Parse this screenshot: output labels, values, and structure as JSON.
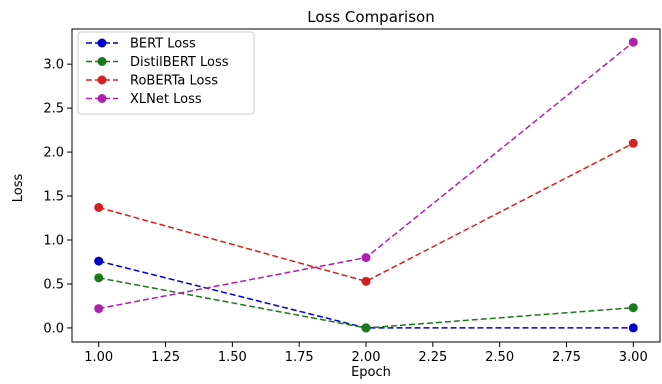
{
  "chart_data": {
    "type": "line",
    "title": "Loss Comparison",
    "xlabel": "Epoch",
    "ylabel": "Loss",
    "x": [
      1.0,
      2.0,
      3.0
    ],
    "xlim": [
      0.9,
      3.1
    ],
    "ylim": [
      -0.16,
      3.4
    ],
    "xticks": [
      1.0,
      1.25,
      1.5,
      1.75,
      2.0,
      2.25,
      2.5,
      2.75,
      3.0
    ],
    "xtick_labels": [
      "1.00",
      "1.25",
      "1.50",
      "1.75",
      "2.00",
      "2.25",
      "2.50",
      "2.75",
      "3.00"
    ],
    "yticks": [
      0.0,
      0.5,
      1.0,
      1.5,
      2.0,
      2.5,
      3.0
    ],
    "ytick_labels": [
      "0.0",
      "0.5",
      "1.0",
      "1.5",
      "2.0",
      "2.5",
      "3.0"
    ],
    "grid": false,
    "legend_position": "top-left",
    "series": [
      {
        "name": "BERT Loss",
        "values": [
          0.76,
          0.0,
          0.0
        ],
        "color": "#0000cc",
        "linestyle": "dashed",
        "marker": "circle"
      },
      {
        "name": "DistilBERT Loss",
        "values": [
          0.57,
          0.0,
          0.23
        ],
        "color": "#1a7a1a",
        "linestyle": "dashed",
        "marker": "circle"
      },
      {
        "name": "RoBERTa Loss",
        "values": [
          1.37,
          0.53,
          2.1
        ],
        "color": "#d62020",
        "linestyle": "dashed",
        "marker": "circle"
      },
      {
        "name": "XLNet Loss",
        "values": [
          0.22,
          0.8,
          3.25
        ],
        "color": "#b020b0",
        "linestyle": "dashed",
        "marker": "circle"
      }
    ]
  }
}
